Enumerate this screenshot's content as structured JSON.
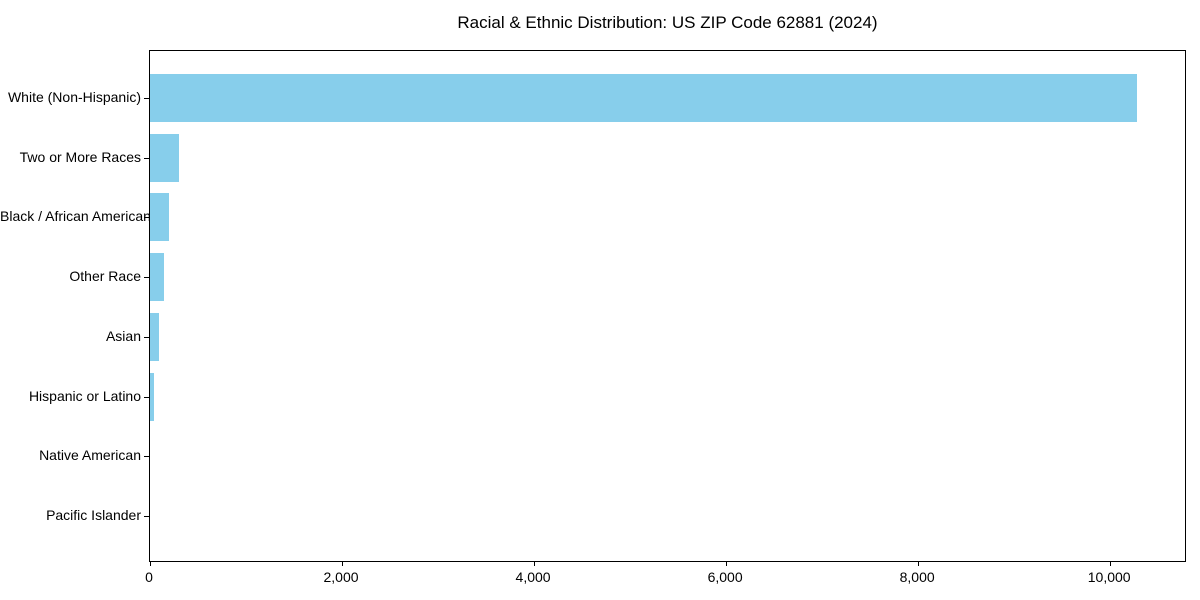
{
  "title": "Racial & Ethnic Distribution: US ZIP Code 62881 (2024)",
  "chart_data": {
    "type": "bar",
    "orientation": "horizontal",
    "title": "Racial & Ethnic Distribution: US ZIP Code 62881 (2024)",
    "xlabel": "",
    "ylabel": "",
    "categories": [
      "White (Non-Hispanic)",
      "Two or More Races",
      "Black / African American",
      "Other Race",
      "Asian",
      "Hispanic or Latino",
      "Native American",
      "Pacific Islander"
    ],
    "values": [
      10280,
      300,
      200,
      150,
      95,
      45,
      0,
      0
    ],
    "bar_color": "#87CEEB",
    "axis_color": "#000000",
    "text_color": "#000000",
    "xlim": [
      0,
      10800
    ],
    "xticks": [
      0,
      2000,
      4000,
      6000,
      8000,
      10000
    ],
    "xtick_labels": [
      "0",
      "2,000",
      "4,000",
      "6,000",
      "8,000",
      "10,000"
    ],
    "grid": false,
    "legend": null
  }
}
